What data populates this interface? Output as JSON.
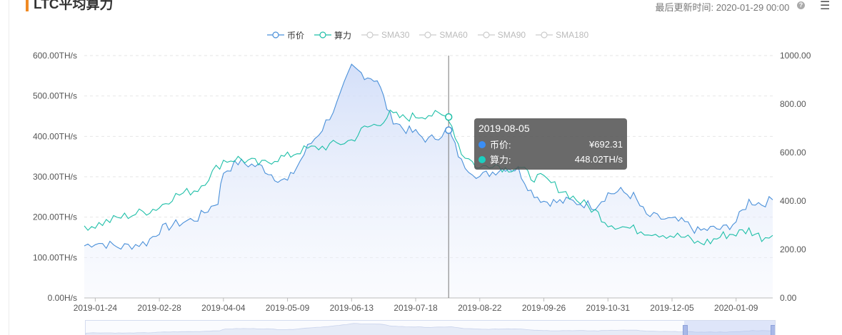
{
  "header": {
    "title": "LTC平均算力",
    "update_label": "最后更新时间:",
    "update_time": "2020-01-29 00:00",
    "help_icon": "question-circle-icon",
    "menu_icon": "hamburger-menu-icon"
  },
  "legend": [
    {
      "label": "币价",
      "color": "#4a90d9",
      "active": true
    },
    {
      "label": "算力",
      "color": "#1fbfa8",
      "active": true
    },
    {
      "label": "SMA30",
      "color": "#cccccc",
      "active": false
    },
    {
      "label": "SMA60",
      "color": "#cccccc",
      "active": false
    },
    {
      "label": "SMA90",
      "color": "#cccccc",
      "active": false
    },
    {
      "label": "SMA180",
      "color": "#cccccc",
      "active": false
    }
  ],
  "tooltip": {
    "date": "2019-08-05",
    "rows": [
      {
        "name": "币价:",
        "value": "¥692.31",
        "color": "#3a8ef5"
      },
      {
        "name": "算力:",
        "value": "448.02TH/s",
        "color": "#1ccfc0"
      }
    ]
  },
  "chart_data": {
    "type": "line",
    "title": "LTC平均算力",
    "x_ticks": [
      "2019-01-24",
      "2019-02-28",
      "2019-04-04",
      "2019-05-09",
      "2019-06-13",
      "2019-07-18",
      "2019-08-22",
      "2019-09-26",
      "2019-10-31",
      "2019-12-05",
      "2020-01-09"
    ],
    "x_range": [
      "2019-01-18",
      "2020-01-29"
    ],
    "y_left": {
      "ticks": [
        "0.00H/s",
        "100.00TH/s",
        "200.00TH/s",
        "300.00TH/s",
        "400.00TH/s",
        "500.00TH/s",
        "600.00TH/s"
      ],
      "range": [
        0,
        600
      ],
      "unit": "TH/s"
    },
    "y_right": {
      "ticks": [
        "0.00",
        "200.00",
        "400.00",
        "600.00",
        "800.00",
        "1000.00"
      ],
      "range": [
        0,
        1000
      ]
    },
    "grid": true,
    "legend_position": "top",
    "crosshair_date": "2019-08-05",
    "series": [
      {
        "name": "币价",
        "axis": "right",
        "color": "#4a90d9",
        "area": true,
        "points": [
          [
            "2019-01-18",
            215
          ],
          [
            "2019-01-24",
            230
          ],
          [
            "2019-02-07",
            210
          ],
          [
            "2019-02-21",
            228
          ],
          [
            "2019-02-28",
            280
          ],
          [
            "2019-03-07",
            300
          ],
          [
            "2019-03-21",
            330
          ],
          [
            "2019-04-01",
            400
          ],
          [
            "2019-04-04",
            520
          ],
          [
            "2019-04-12",
            560
          ],
          [
            "2019-04-25",
            540
          ],
          [
            "2019-05-02",
            500
          ],
          [
            "2019-05-09",
            480
          ],
          [
            "2019-05-14",
            540
          ],
          [
            "2019-05-20",
            620
          ],
          [
            "2019-05-28",
            700
          ],
          [
            "2019-06-05",
            800
          ],
          [
            "2019-06-13",
            950
          ],
          [
            "2019-06-20",
            920
          ],
          [
            "2019-06-27",
            900
          ],
          [
            "2019-07-04",
            750
          ],
          [
            "2019-07-11",
            700
          ],
          [
            "2019-07-18",
            680
          ],
          [
            "2019-07-25",
            650
          ],
          [
            "2019-08-05",
            692.31
          ],
          [
            "2019-08-12",
            560
          ],
          [
            "2019-08-22",
            500
          ],
          [
            "2019-08-29",
            520
          ],
          [
            "2019-09-05",
            540
          ],
          [
            "2019-09-12",
            530
          ],
          [
            "2019-09-19",
            440
          ],
          [
            "2019-09-26",
            400
          ],
          [
            "2019-10-03",
            395
          ],
          [
            "2019-10-10",
            400
          ],
          [
            "2019-10-24",
            380
          ],
          [
            "2019-10-31",
            430
          ],
          [
            "2019-11-07",
            440
          ],
          [
            "2019-11-14",
            420
          ],
          [
            "2019-11-21",
            340
          ],
          [
            "2019-12-05",
            320
          ],
          [
            "2019-12-12",
            310
          ],
          [
            "2019-12-19",
            275
          ],
          [
            "2019-12-26",
            285
          ],
          [
            "2020-01-02",
            285
          ],
          [
            "2020-01-09",
            315
          ],
          [
            "2020-01-16",
            400
          ],
          [
            "2020-01-23",
            390
          ],
          [
            "2020-01-29",
            405
          ]
        ]
      },
      {
        "name": "算力",
        "axis": "left",
        "color": "#1fbfa8",
        "area": false,
        "points": [
          [
            "2019-01-18",
            178
          ],
          [
            "2019-01-24",
            180
          ],
          [
            "2019-02-07",
            200
          ],
          [
            "2019-02-21",
            215
          ],
          [
            "2019-02-28",
            225
          ],
          [
            "2019-03-07",
            250
          ],
          [
            "2019-03-21",
            270
          ],
          [
            "2019-04-04",
            340
          ],
          [
            "2019-04-12",
            345
          ],
          [
            "2019-04-25",
            330
          ],
          [
            "2019-05-02",
            345
          ],
          [
            "2019-05-09",
            350
          ],
          [
            "2019-05-16",
            365
          ],
          [
            "2019-05-30",
            375
          ],
          [
            "2019-06-13",
            390
          ],
          [
            "2019-06-20",
            420
          ],
          [
            "2019-06-27",
            430
          ],
          [
            "2019-07-04",
            455
          ],
          [
            "2019-07-11",
            445
          ],
          [
            "2019-07-18",
            450
          ],
          [
            "2019-07-25",
            455
          ],
          [
            "2019-08-05",
            448.02
          ],
          [
            "2019-08-12",
            360
          ],
          [
            "2019-08-22",
            320
          ],
          [
            "2019-08-29",
            335
          ],
          [
            "2019-09-05",
            320
          ],
          [
            "2019-09-12",
            325
          ],
          [
            "2019-09-19",
            300
          ],
          [
            "2019-09-26",
            295
          ],
          [
            "2019-10-10",
            255
          ],
          [
            "2019-10-24",
            215
          ],
          [
            "2019-10-31",
            185
          ],
          [
            "2019-11-14",
            170
          ],
          [
            "2019-11-28",
            160
          ],
          [
            "2019-12-12",
            150
          ],
          [
            "2019-12-19",
            135
          ],
          [
            "2019-12-26",
            140
          ],
          [
            "2020-01-02",
            155
          ],
          [
            "2020-01-09",
            160
          ],
          [
            "2020-01-16",
            168
          ],
          [
            "2020-01-23",
            150
          ],
          [
            "2020-01-29",
            155
          ]
        ]
      }
    ]
  }
}
